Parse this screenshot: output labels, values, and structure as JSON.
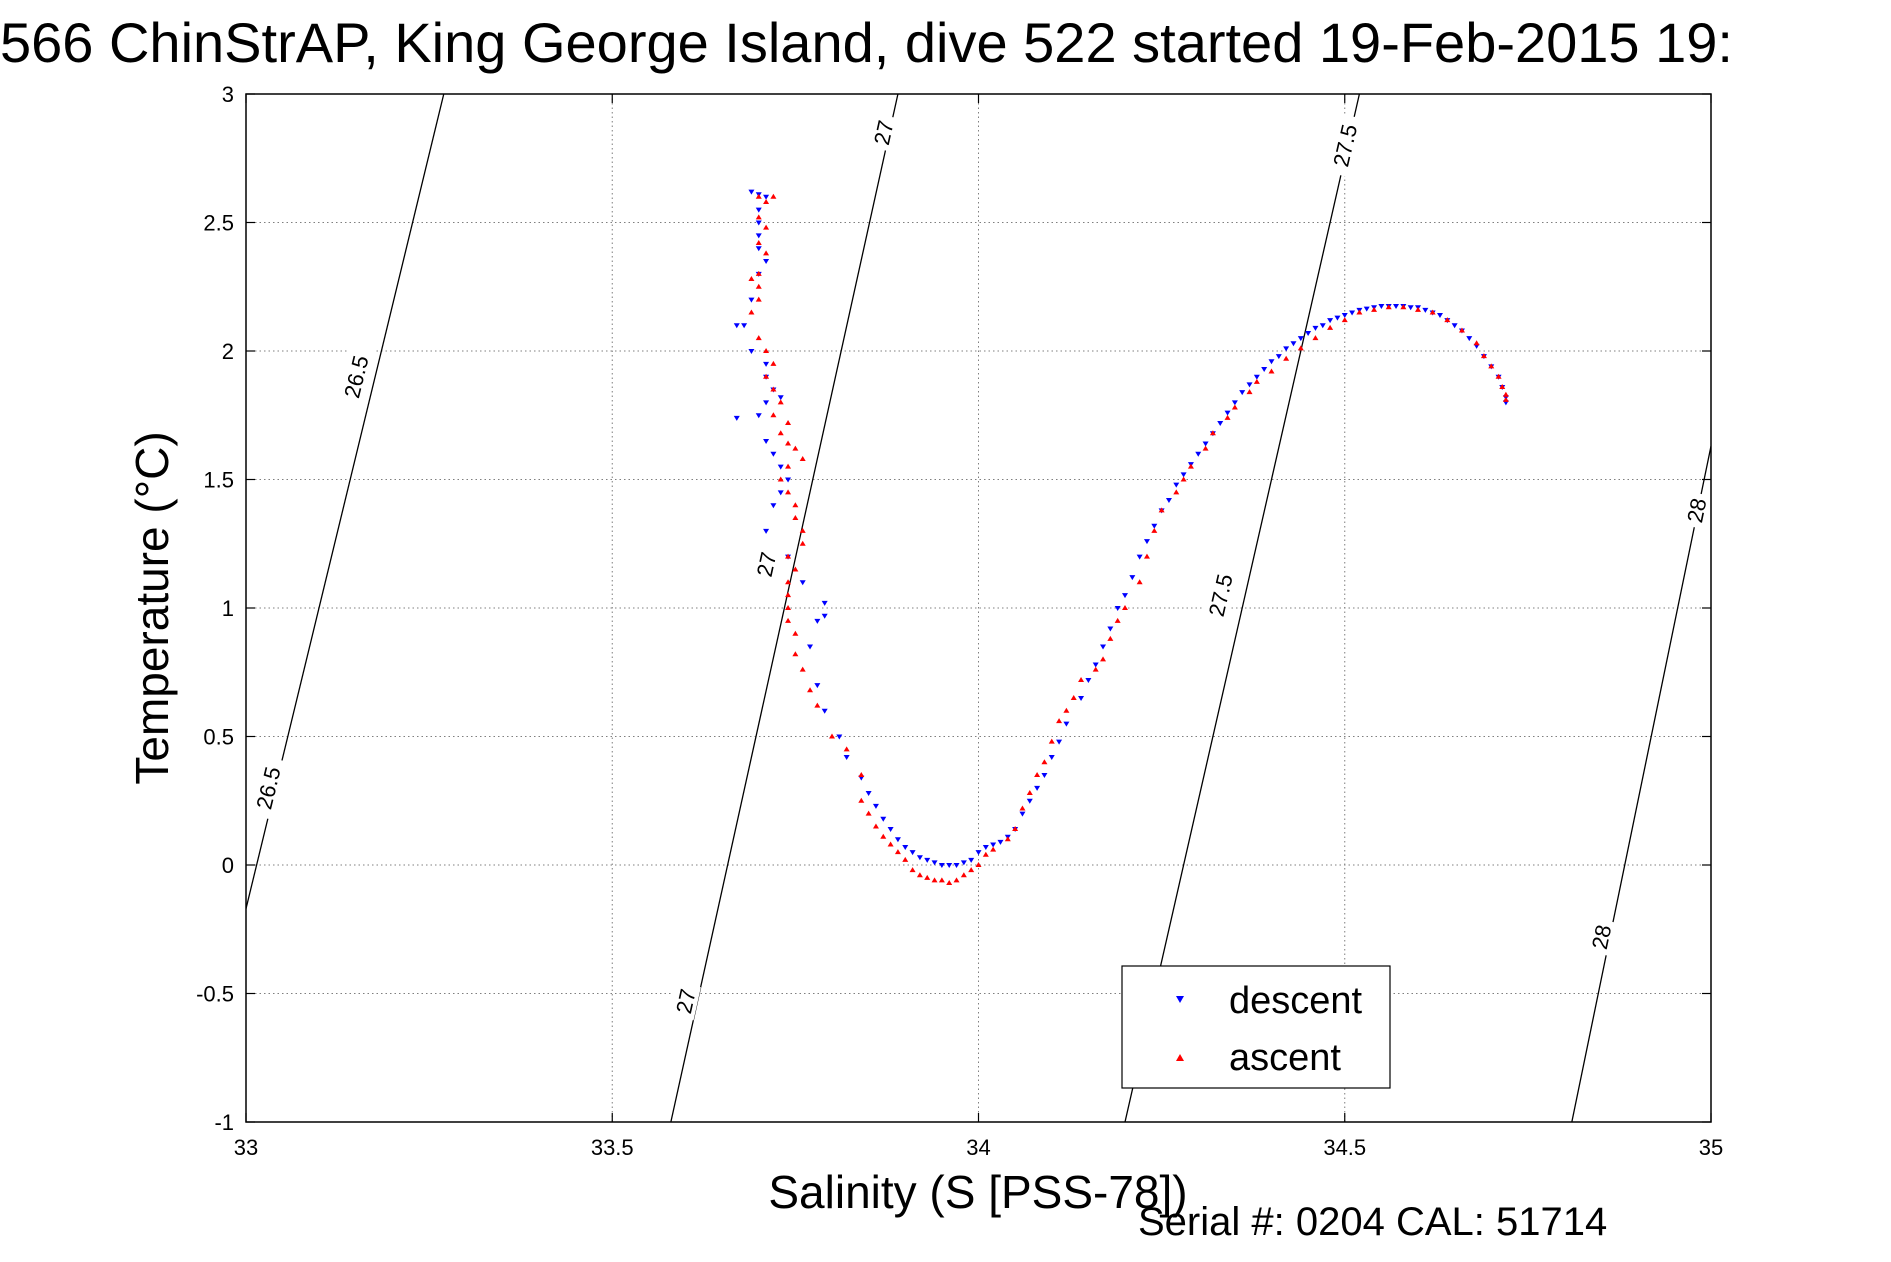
{
  "title": "566 ChinStrAP, King George Island, dive 522 started 19-Feb-2015 19:",
  "footer": "Serial #: 0204  CAL: 51714",
  "colors": {
    "descent": "#0000ff",
    "ascent": "#ff0000",
    "axis": "#000000",
    "grid": "#7f7f7f",
    "isopycnal": "#000000"
  },
  "chart_data": {
    "type": "scatter",
    "xlabel": "Salinity (S [PSS-78])",
    "ylabel": "Temperature (°C)",
    "xlim": [
      33,
      35
    ],
    "ylim": [
      -1,
      3
    ],
    "xticks": [
      33,
      33.5,
      34,
      34.5,
      35
    ],
    "xtick_labels": [
      "33",
      "33.5",
      "34",
      "34.5",
      "35"
    ],
    "yticks": [
      -1,
      -0.5,
      0,
      0.5,
      1,
      1.5,
      2,
      2.5,
      3
    ],
    "ytick_labels": [
      "-1",
      "-0.5",
      "0",
      "0.5",
      "1",
      "1.5",
      "2",
      "2.5",
      "3"
    ],
    "grid": true,
    "legend_position": "bottom-right",
    "isopycnals": [
      {
        "label": "26.5",
        "points": [
          [
            33.0,
            -0.17
          ],
          [
            33.27,
            3.0
          ]
        ],
        "label_positions": [
          [
            33.03,
            0.3
          ],
          [
            33.15,
            1.9
          ]
        ]
      },
      {
        "label": "27",
        "points": [
          [
            33.58,
            -1.0
          ],
          [
            33.89,
            3.0
          ]
        ],
        "label_positions": [
          [
            33.6,
            -0.53
          ],
          [
            33.71,
            1.17
          ],
          [
            33.87,
            2.85
          ]
        ]
      },
      {
        "label": "27.5",
        "points": [
          [
            34.2,
            -1.0
          ],
          [
            34.52,
            3.0
          ]
        ],
        "label_positions": [
          [
            34.33,
            1.05
          ],
          [
            34.5,
            2.8
          ]
        ]
      },
      {
        "label": "28",
        "points": [
          [
            34.81,
            -1.0
          ],
          [
            35.0,
            1.63
          ]
        ],
        "label_positions": [
          [
            34.85,
            -0.28
          ],
          [
            34.98,
            1.38
          ]
        ]
      }
    ],
    "series": [
      {
        "name": "descent",
        "marker": "triangle-down",
        "points": [
          [
            33.69,
            2.62
          ],
          [
            33.7,
            2.61
          ],
          [
            33.71,
            2.6
          ],
          [
            33.7,
            2.55
          ],
          [
            33.7,
            2.5
          ],
          [
            33.7,
            2.45
          ],
          [
            33.7,
            2.4
          ],
          [
            33.71,
            2.35
          ],
          [
            33.7,
            2.3
          ],
          [
            33.69,
            2.2
          ],
          [
            33.68,
            2.1
          ],
          [
            33.67,
            2.1
          ],
          [
            33.69,
            2.0
          ],
          [
            33.71,
            1.95
          ],
          [
            33.71,
            1.9
          ],
          [
            33.72,
            1.85
          ],
          [
            33.73,
            1.82
          ],
          [
            33.71,
            1.8
          ],
          [
            33.7,
            1.75
          ],
          [
            33.67,
            1.74
          ],
          [
            33.71,
            1.65
          ],
          [
            33.72,
            1.6
          ],
          [
            33.73,
            1.55
          ],
          [
            33.74,
            1.5
          ],
          [
            33.73,
            1.45
          ],
          [
            33.72,
            1.4
          ],
          [
            33.71,
            1.3
          ],
          [
            33.74,
            1.2
          ],
          [
            33.76,
            1.1
          ],
          [
            33.79,
            1.02
          ],
          [
            33.79,
            0.97
          ],
          [
            33.78,
            0.95
          ],
          [
            33.77,
            0.85
          ],
          [
            33.78,
            0.7
          ],
          [
            33.79,
            0.6
          ],
          [
            33.81,
            0.5
          ],
          [
            33.82,
            0.42
          ],
          [
            33.84,
            0.34
          ],
          [
            33.85,
            0.28
          ],
          [
            33.86,
            0.23
          ],
          [
            33.87,
            0.18
          ],
          [
            33.88,
            0.14
          ],
          [
            33.89,
            0.1
          ],
          [
            33.9,
            0.07
          ],
          [
            33.91,
            0.05
          ],
          [
            33.92,
            0.03
          ],
          [
            33.93,
            0.02
          ],
          [
            33.94,
            0.01
          ],
          [
            33.95,
            0.0
          ],
          [
            33.96,
            0.0
          ],
          [
            33.97,
            0.0
          ],
          [
            33.98,
            0.01
          ],
          [
            33.99,
            0.02
          ],
          [
            34.0,
            0.05
          ],
          [
            34.01,
            0.07
          ],
          [
            34.02,
            0.08
          ],
          [
            34.03,
            0.09
          ],
          [
            34.04,
            0.11
          ],
          [
            34.05,
            0.14
          ],
          [
            34.06,
            0.2
          ],
          [
            34.07,
            0.25
          ],
          [
            34.08,
            0.3
          ],
          [
            34.09,
            0.35
          ],
          [
            34.1,
            0.42
          ],
          [
            34.11,
            0.48
          ],
          [
            34.12,
            0.55
          ],
          [
            34.14,
            0.65
          ],
          [
            34.15,
            0.72
          ],
          [
            34.16,
            0.78
          ],
          [
            34.17,
            0.85
          ],
          [
            34.18,
            0.92
          ],
          [
            34.19,
            1.0
          ],
          [
            34.2,
            1.05
          ],
          [
            34.21,
            1.12
          ],
          [
            34.22,
            1.2
          ],
          [
            34.23,
            1.26
          ],
          [
            34.24,
            1.32
          ],
          [
            34.25,
            1.38
          ],
          [
            34.26,
            1.42
          ],
          [
            34.27,
            1.48
          ],
          [
            34.28,
            1.52
          ],
          [
            34.29,
            1.56
          ],
          [
            34.3,
            1.6
          ],
          [
            34.31,
            1.64
          ],
          [
            34.32,
            1.68
          ],
          [
            34.33,
            1.72
          ],
          [
            34.34,
            1.76
          ],
          [
            34.35,
            1.8
          ],
          [
            34.36,
            1.84
          ],
          [
            34.37,
            1.87
          ],
          [
            34.38,
            1.9
          ],
          [
            34.39,
            1.93
          ],
          [
            34.4,
            1.96
          ],
          [
            34.41,
            1.98
          ],
          [
            34.42,
            2.01
          ],
          [
            34.43,
            2.03
          ],
          [
            34.44,
            2.05
          ],
          [
            34.45,
            2.07
          ],
          [
            34.46,
            2.09
          ],
          [
            34.47,
            2.1
          ],
          [
            34.48,
            2.12
          ],
          [
            34.49,
            2.13
          ],
          [
            34.5,
            2.14
          ],
          [
            34.51,
            2.15
          ],
          [
            34.52,
            2.16
          ],
          [
            34.53,
            2.165
          ],
          [
            34.54,
            2.17
          ],
          [
            34.55,
            2.175
          ],
          [
            34.56,
            2.175
          ],
          [
            34.57,
            2.175
          ],
          [
            34.58,
            2.175
          ],
          [
            34.59,
            2.17
          ],
          [
            34.6,
            2.17
          ],
          [
            34.61,
            2.16
          ],
          [
            34.62,
            2.15
          ],
          [
            34.63,
            2.14
          ],
          [
            34.64,
            2.12
          ],
          [
            34.65,
            2.1
          ],
          [
            34.66,
            2.08
          ],
          [
            34.67,
            2.05
          ],
          [
            34.68,
            2.02
          ],
          [
            34.69,
            1.98
          ],
          [
            34.7,
            1.94
          ],
          [
            34.71,
            1.9
          ],
          [
            34.715,
            1.86
          ],
          [
            34.72,
            1.82
          ],
          [
            34.72,
            1.8
          ]
        ]
      },
      {
        "name": "ascent",
        "marker": "triangle-up",
        "points": [
          [
            33.7,
            2.6
          ],
          [
            33.71,
            2.58
          ],
          [
            33.72,
            2.6
          ],
          [
            33.7,
            2.52
          ],
          [
            33.71,
            2.48
          ],
          [
            33.7,
            2.42
          ],
          [
            33.71,
            2.38
          ],
          [
            33.7,
            2.3
          ],
          [
            33.69,
            2.28
          ],
          [
            33.7,
            2.25
          ],
          [
            33.7,
            2.2
          ],
          [
            33.69,
            2.15
          ],
          [
            33.7,
            2.05
          ],
          [
            33.71,
            2.0
          ],
          [
            33.72,
            1.95
          ],
          [
            33.71,
            1.9
          ],
          [
            33.72,
            1.85
          ],
          [
            33.73,
            1.8
          ],
          [
            33.72,
            1.75
          ],
          [
            33.74,
            1.72
          ],
          [
            33.73,
            1.68
          ],
          [
            33.74,
            1.64
          ],
          [
            33.75,
            1.62
          ],
          [
            33.76,
            1.58
          ],
          [
            33.74,
            1.55
          ],
          [
            33.73,
            1.5
          ],
          [
            33.74,
            1.45
          ],
          [
            33.75,
            1.4
          ],
          [
            33.75,
            1.35
          ],
          [
            33.76,
            1.3
          ],
          [
            33.76,
            1.25
          ],
          [
            33.74,
            1.2
          ],
          [
            33.75,
            1.15
          ],
          [
            33.74,
            1.1
          ],
          [
            33.74,
            1.05
          ],
          [
            33.74,
            1.0
          ],
          [
            33.74,
            0.95
          ],
          [
            33.75,
            0.9
          ],
          [
            33.75,
            0.82
          ],
          [
            33.76,
            0.76
          ],
          [
            33.77,
            0.68
          ],
          [
            33.78,
            0.62
          ],
          [
            33.8,
            0.5
          ],
          [
            33.82,
            0.45
          ],
          [
            33.84,
            0.35
          ],
          [
            33.84,
            0.25
          ],
          [
            33.85,
            0.2
          ],
          [
            33.86,
            0.15
          ],
          [
            33.87,
            0.11
          ],
          [
            33.88,
            0.08
          ],
          [
            33.89,
            0.05
          ],
          [
            33.9,
            0.02
          ],
          [
            33.91,
            -0.02
          ],
          [
            33.92,
            -0.04
          ],
          [
            33.93,
            -0.05
          ],
          [
            33.94,
            -0.06
          ],
          [
            33.95,
            -0.06
          ],
          [
            33.96,
            -0.07
          ],
          [
            33.97,
            -0.06
          ],
          [
            33.98,
            -0.04
          ],
          [
            33.99,
            -0.02
          ],
          [
            34.0,
            0.0
          ],
          [
            34.01,
            0.04
          ],
          [
            34.02,
            0.06
          ],
          [
            34.04,
            0.1
          ],
          [
            34.05,
            0.14
          ],
          [
            34.06,
            0.22
          ],
          [
            34.07,
            0.28
          ],
          [
            34.08,
            0.35
          ],
          [
            34.09,
            0.4
          ],
          [
            34.1,
            0.48
          ],
          [
            34.11,
            0.56
          ],
          [
            34.12,
            0.6
          ],
          [
            34.13,
            0.65
          ],
          [
            34.14,
            0.72
          ],
          [
            34.16,
            0.76
          ],
          [
            34.17,
            0.8
          ],
          [
            34.18,
            0.88
          ],
          [
            34.19,
            0.95
          ],
          [
            34.2,
            1.0
          ],
          [
            34.22,
            1.1
          ],
          [
            34.23,
            1.2
          ],
          [
            34.24,
            1.3
          ],
          [
            34.25,
            1.38
          ],
          [
            34.27,
            1.45
          ],
          [
            34.28,
            1.5
          ],
          [
            34.29,
            1.55
          ],
          [
            34.31,
            1.62
          ],
          [
            34.32,
            1.68
          ],
          [
            34.34,
            1.74
          ],
          [
            34.35,
            1.78
          ],
          [
            34.37,
            1.84
          ],
          [
            34.38,
            1.88
          ],
          [
            34.4,
            1.92
          ],
          [
            34.42,
            1.97
          ],
          [
            34.44,
            2.01
          ],
          [
            34.46,
            2.05
          ],
          [
            34.48,
            2.09
          ],
          [
            34.5,
            2.12
          ],
          [
            34.52,
            2.15
          ],
          [
            34.54,
            2.16
          ],
          [
            34.56,
            2.17
          ],
          [
            34.58,
            2.17
          ],
          [
            34.6,
            2.16
          ],
          [
            34.62,
            2.15
          ],
          [
            34.64,
            2.12
          ],
          [
            34.66,
            2.08
          ],
          [
            34.68,
            2.03
          ],
          [
            34.69,
            1.98
          ],
          [
            34.7,
            1.94
          ],
          [
            34.71,
            1.9
          ],
          [
            34.715,
            1.86
          ],
          [
            34.72,
            1.83
          ],
          [
            34.72,
            1.81
          ]
        ]
      }
    ]
  }
}
